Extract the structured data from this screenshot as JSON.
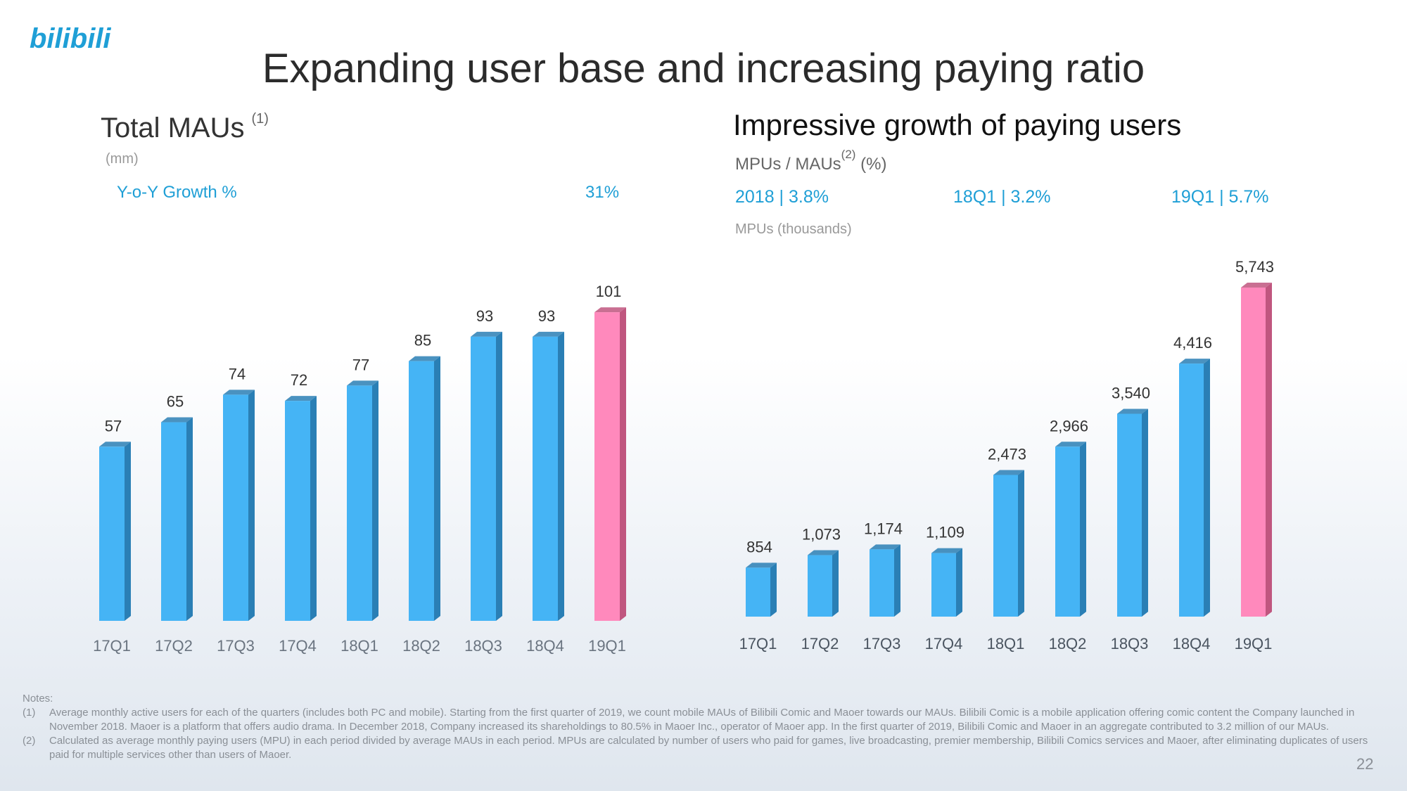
{
  "logo": {
    "text": "bilibili",
    "color": "#1f9fd6"
  },
  "title": "Expanding user base and increasing paying ratio",
  "left": {
    "title": "Total MAUs",
    "title_note": "(1)",
    "unit": "(mm)",
    "yoy_label": "Y-o-Y Growth %",
    "yoy_value": "31%"
  },
  "right": {
    "title": "Impressive growth of paying users",
    "subtitle_main": "MPUs / MAUs",
    "subtitle_note": "(2)",
    "subtitle_unit": " (%)",
    "stats": [
      "2018 | 3.8%",
      "18Q1 | 3.2%",
      "19Q1 | 5.7%"
    ],
    "series_label": "MPUs (thousands)"
  },
  "colors": {
    "bar": "#45b4f5",
    "bar_side": "#2a7fb5",
    "highlight": "#ff89bc",
    "highlight_side": "#c0567f",
    "accent": "#1f9fd6"
  },
  "chart_data": [
    {
      "type": "bar",
      "title": "Total MAUs",
      "ylabel": "(mm)",
      "categories": [
        "17Q1",
        "17Q2",
        "17Q3",
        "17Q4",
        "18Q1",
        "18Q2",
        "18Q3",
        "18Q4",
        "19Q1"
      ],
      "values": [
        57,
        65,
        74,
        72,
        77,
        85,
        93,
        93,
        101
      ],
      "labels": [
        "57",
        "65",
        "74",
        "72",
        "77",
        "85",
        "93",
        "93",
        "101"
      ],
      "highlight_index": 8,
      "ylim": [
        0,
        110
      ]
    },
    {
      "type": "bar",
      "title": "Impressive growth of paying users",
      "ylabel": "MPUs (thousands)",
      "categories": [
        "17Q1",
        "17Q2",
        "17Q3",
        "17Q4",
        "18Q1",
        "18Q2",
        "18Q3",
        "18Q4",
        "19Q1"
      ],
      "values": [
        854,
        1073,
        1174,
        1109,
        2473,
        2966,
        3540,
        4416,
        5743
      ],
      "labels": [
        "854",
        "1,073",
        "1,174",
        "1,109",
        "2,473",
        "2,966",
        "3,540",
        "4,416",
        "5,743"
      ],
      "highlight_index": 8,
      "ylim": [
        0,
        6000
      ]
    }
  ],
  "notes": {
    "heading": "Notes:",
    "items": [
      {
        "num": "(1)",
        "text": "Average monthly active users for each of the quarters (includes both PC and mobile). Starting from the first quarter of 2019, we count mobile MAUs of Bilibili Comic and Maoer towards our MAUs. Bilibili Comic is a mobile application offering comic content the Company launched in November 2018. Maoer is a platform that offers audio drama. In December 2018, Company increased its shareholdings to 80.5% in Maoer Inc., operator of Maoer app. In the first quarter of 2019, Bilibili Comic and Maoer in an aggregate contributed to 3.2 million of our MAUs."
      },
      {
        "num": "(2)",
        "text": "Calculated as average monthly paying users (MPU) in each period divided by average MAUs in each period. MPUs are calculated by number of users who paid for games, live broadcasting, premier membership, Bilibili Comics services and Maoer, after eliminating duplicates of users paid for multiple services other than users of Maoer."
      }
    ]
  },
  "page_number": "22"
}
